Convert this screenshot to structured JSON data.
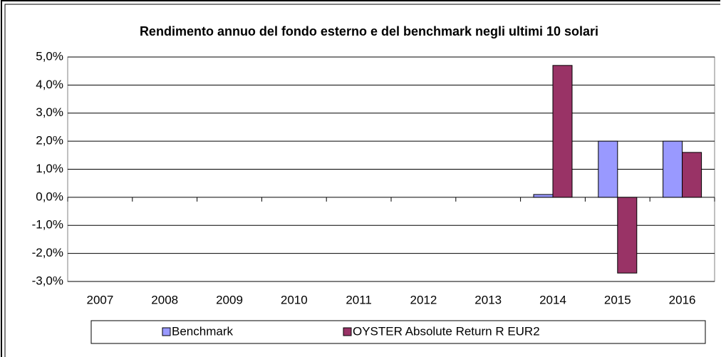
{
  "chart_data": {
    "type": "bar",
    "title": "Rendimento annuo del fondo esterno e del benchmark negli ultimi  10 solari",
    "categories": [
      "2007",
      "2008",
      "2009",
      "2010",
      "2011",
      "2012",
      "2013",
      "2014",
      "2015",
      "2016"
    ],
    "series": [
      {
        "name": "Benchmark",
        "color": "#9999ff",
        "values": [
          null,
          null,
          null,
          null,
          null,
          null,
          null,
          0.1,
          2.0,
          2.0
        ]
      },
      {
        "name": "OYSTER Absolute Return R EUR2",
        "color": "#993366",
        "values": [
          null,
          null,
          null,
          null,
          null,
          null,
          null,
          4.7,
          -2.7,
          1.6
        ]
      }
    ],
    "ylim": [
      -3,
      5
    ],
    "yticks": [
      {
        "value": -3,
        "label": "-3,0%"
      },
      {
        "value": -2,
        "label": "-2,0%"
      },
      {
        "value": -1,
        "label": "-1,0%"
      },
      {
        "value": 0,
        "label": "0,0%"
      },
      {
        "value": 1,
        "label": "1,0%"
      },
      {
        "value": 2,
        "label": "2,0%"
      },
      {
        "value": 3,
        "label": "3,0%"
      },
      {
        "value": 4,
        "label": "4,0%"
      },
      {
        "value": 5,
        "label": "5,0%"
      }
    ],
    "grid": true,
    "legend": "bottom"
  }
}
